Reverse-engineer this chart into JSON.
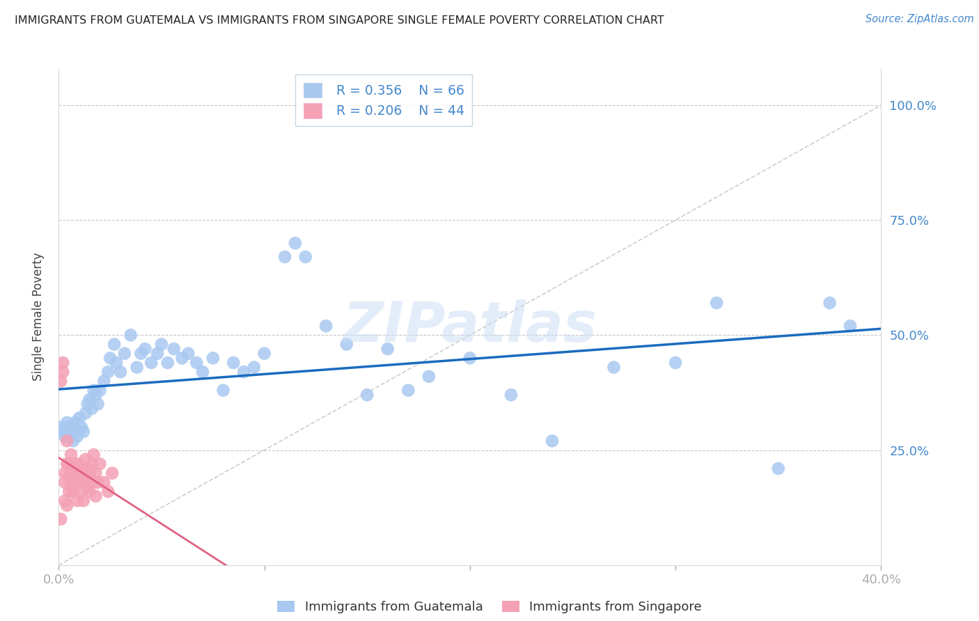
{
  "title": "IMMIGRANTS FROM GUATEMALA VS IMMIGRANTS FROM SINGAPORE SINGLE FEMALE POVERTY CORRELATION CHART",
  "source": "Source: ZipAtlas.com",
  "ylabel": "Single Female Poverty",
  "ylabel_right_ticks": [
    "100.0%",
    "75.0%",
    "50.0%",
    "25.0%"
  ],
  "ylabel_right_vals": [
    1.0,
    0.75,
    0.5,
    0.25
  ],
  "xlim": [
    0.0,
    0.4
  ],
  "ylim": [
    0.0,
    1.08
  ],
  "legend_r1": "R = 0.356",
  "legend_n1": "N = 66",
  "legend_r2": "R = 0.206",
  "legend_n2": "N = 44",
  "color_guatemala": "#a8c8f0",
  "color_singapore": "#f4a0b5",
  "color_trend_guatemala": "#1a6bbf",
  "color_trend_singapore": "#e06080",
  "color_diagonal": "#c8c8c8",
  "watermark": "ZIPatlas",
  "guatemala_x": [
    0.001,
    0.002,
    0.003,
    0.004,
    0.005,
    0.005,
    0.006,
    0.007,
    0.008,
    0.008,
    0.009,
    0.01,
    0.011,
    0.012,
    0.013,
    0.014,
    0.015,
    0.016,
    0.017,
    0.018,
    0.019,
    0.02,
    0.022,
    0.024,
    0.025,
    0.027,
    0.028,
    0.03,
    0.032,
    0.035,
    0.038,
    0.04,
    0.042,
    0.045,
    0.048,
    0.05,
    0.053,
    0.056,
    0.06,
    0.063,
    0.067,
    0.07,
    0.075,
    0.08,
    0.085,
    0.09,
    0.095,
    0.1,
    0.11,
    0.115,
    0.12,
    0.13,
    0.14,
    0.15,
    0.16,
    0.17,
    0.18,
    0.2,
    0.22,
    0.24,
    0.27,
    0.3,
    0.32,
    0.35,
    0.375,
    0.385
  ],
  "guatemala_y": [
    0.3,
    0.29,
    0.28,
    0.31,
    0.3,
    0.28,
    0.29,
    0.27,
    0.3,
    0.31,
    0.28,
    0.32,
    0.3,
    0.29,
    0.33,
    0.35,
    0.36,
    0.34,
    0.38,
    0.37,
    0.35,
    0.38,
    0.4,
    0.42,
    0.45,
    0.48,
    0.44,
    0.42,
    0.46,
    0.5,
    0.43,
    0.46,
    0.47,
    0.44,
    0.46,
    0.48,
    0.44,
    0.47,
    0.45,
    0.46,
    0.44,
    0.42,
    0.45,
    0.38,
    0.44,
    0.42,
    0.43,
    0.46,
    0.67,
    0.7,
    0.67,
    0.52,
    0.48,
    0.37,
    0.47,
    0.38,
    0.41,
    0.45,
    0.37,
    0.27,
    0.43,
    0.44,
    0.57,
    0.21,
    0.57,
    0.52
  ],
  "singapore_x": [
    0.001,
    0.001,
    0.002,
    0.002,
    0.003,
    0.003,
    0.003,
    0.004,
    0.004,
    0.004,
    0.005,
    0.005,
    0.005,
    0.006,
    0.006,
    0.006,
    0.007,
    0.007,
    0.008,
    0.008,
    0.009,
    0.009,
    0.01,
    0.01,
    0.011,
    0.011,
    0.012,
    0.012,
    0.013,
    0.013,
    0.014,
    0.014,
    0.015,
    0.015,
    0.016,
    0.016,
    0.017,
    0.018,
    0.018,
    0.019,
    0.02,
    0.022,
    0.024,
    0.026
  ],
  "singapore_y": [
    0.4,
    0.1,
    0.42,
    0.44,
    0.2,
    0.14,
    0.18,
    0.27,
    0.22,
    0.13,
    0.22,
    0.16,
    0.19,
    0.24,
    0.17,
    0.2,
    0.21,
    0.16,
    0.22,
    0.18,
    0.2,
    0.14,
    0.19,
    0.22,
    0.16,
    0.2,
    0.18,
    0.14,
    0.19,
    0.23,
    0.17,
    0.21,
    0.2,
    0.16,
    0.22,
    0.18,
    0.24,
    0.2,
    0.15,
    0.18,
    0.22,
    0.18,
    0.16,
    0.2
  ]
}
